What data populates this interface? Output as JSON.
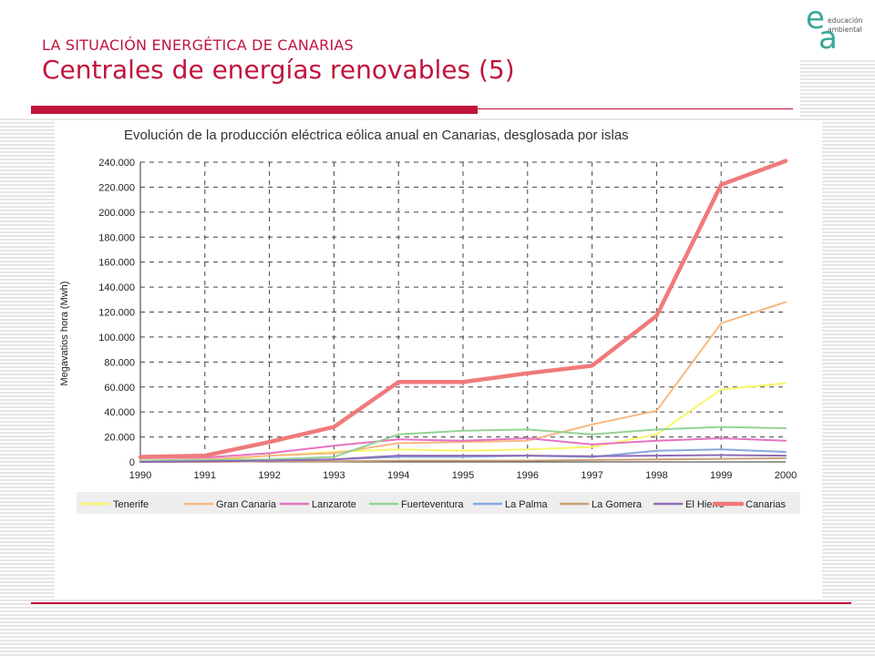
{
  "slide": {
    "subtitle": "LA SITUACIÓN ENERGÉTICA DE CANARIAS",
    "title": "Centrales de energías renovables (5)",
    "accent_color": "#c0143c"
  },
  "logo": {
    "letter_e": "e",
    "letter_a": "a",
    "word_1": "educación",
    "word_2": "ambiental",
    "color": "#3aa898"
  },
  "chart_data": {
    "type": "line",
    "title": "Evolución de la producción eléctrica eólica anual en Canarias, desglosada por islas",
    "xlabel": "",
    "ylabel": "Megavatios hora (Mwh)",
    "x": [
      1990,
      1991,
      1992,
      1993,
      1994,
      1995,
      1996,
      1997,
      1998,
      1999,
      2000
    ],
    "x_tick_labels": [
      "1990",
      "1991",
      "1992",
      "1993",
      "1994",
      "1995",
      "1996",
      "1997",
      "1998",
      "1999",
      "2000"
    ],
    "ylim": [
      0,
      240000
    ],
    "y_ticks": [
      0,
      20000,
      40000,
      60000,
      80000,
      100000,
      120000,
      140000,
      160000,
      180000,
      200000,
      220000,
      240000
    ],
    "y_tick_labels": [
      "0",
      "20.000",
      "40.000",
      "60.000",
      "80.000",
      "100.000",
      "120.000",
      "140.000",
      "160.000",
      "180.000",
      "200.000",
      "220.000",
      "240.000"
    ],
    "grid": true,
    "legend_position": "bottom",
    "series": [
      {
        "name": "Tenerife",
        "color": "#f7f76a",
        "values": [
          500,
          1000,
          5000,
          8000,
          10000,
          9000,
          10000,
          12000,
          22000,
          58000,
          63000
        ]
      },
      {
        "name": "Gran Canaria",
        "color": "#f6b982",
        "values": [
          1000,
          2000,
          5000,
          7000,
          15000,
          16000,
          17000,
          30000,
          41000,
          111000,
          128000
        ]
      },
      {
        "name": "Lanzarote",
        "color": "#e673c2",
        "values": [
          3000,
          3500,
          7000,
          13000,
          18000,
          17000,
          19000,
          14000,
          17000,
          19000,
          17000
        ]
      },
      {
        "name": "Fuerteventura",
        "color": "#93d393",
        "values": [
          1000,
          1500,
          2000,
          4000,
          22000,
          25000,
          26000,
          22000,
          26000,
          28000,
          27000
        ]
      },
      {
        "name": "La Palma",
        "color": "#85a9db",
        "values": [
          0,
          500,
          1000,
          2000,
          4000,
          4000,
          5000,
          4000,
          9000,
          10000,
          8000
        ]
      },
      {
        "name": "La Gomera",
        "color": "#caa075",
        "values": [
          0,
          0,
          500,
          500,
          1000,
          1000,
          1000,
          1500,
          2000,
          2500,
          3000
        ]
      },
      {
        "name": "El Hierro",
        "color": "#8e6bb5",
        "values": [
          0,
          500,
          1000,
          2000,
          5000,
          5000,
          5000,
          4500,
          5000,
          5500,
          5000
        ]
      },
      {
        "name": "Canarias",
        "color": "#f07a7a",
        "values": [
          4000,
          5000,
          16000,
          28000,
          64000,
          64000,
          71000,
          77000,
          117000,
          222000,
          241000
        ]
      }
    ]
  }
}
